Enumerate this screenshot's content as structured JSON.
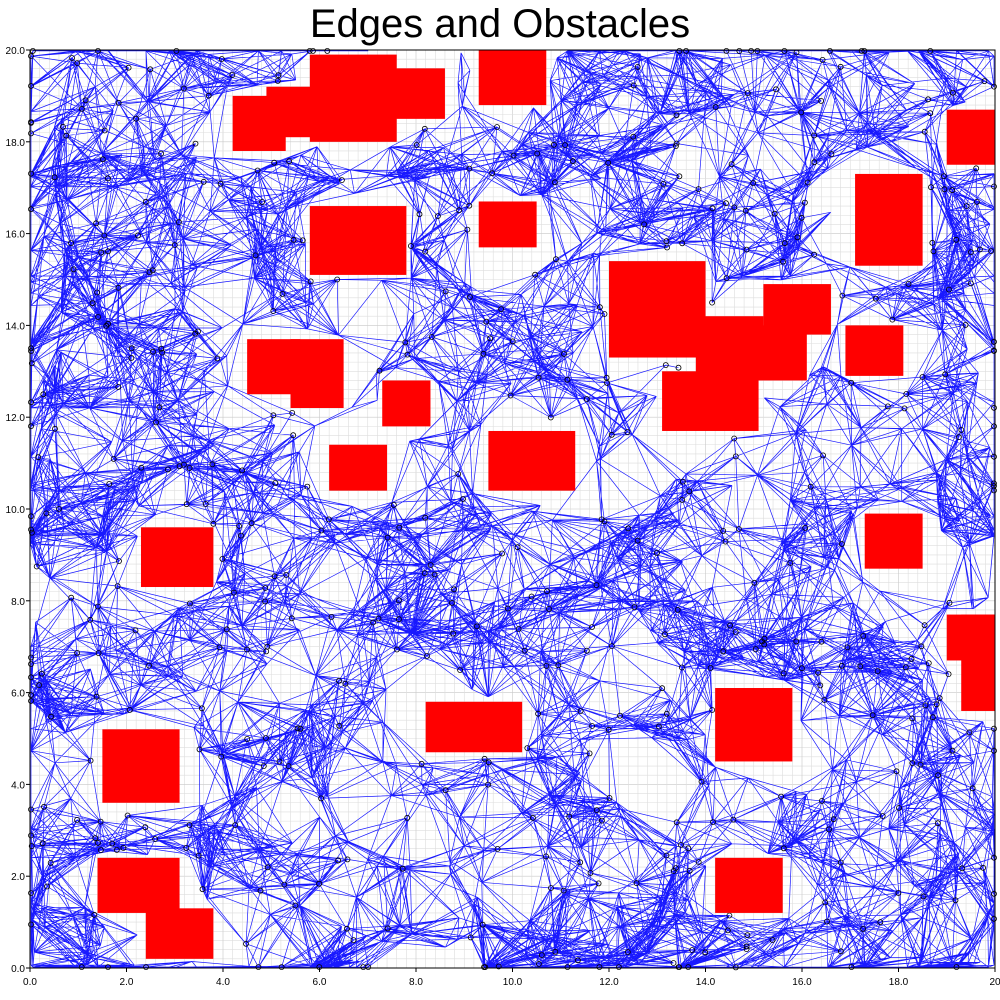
{
  "title": "Edges and Obstacles",
  "colors": {
    "edges": "#0000ff",
    "obstacles": "#ff0000",
    "nodes": "#000000",
    "grid_minor": "#dddddd",
    "grid_major": "#c8c8c8"
  },
  "chart_data": {
    "type": "scatter",
    "title": "Edges and Obstacles",
    "xlabel": "",
    "ylabel": "",
    "xlim": [
      0,
      20
    ],
    "ylim": [
      0,
      20
    ],
    "grid": true,
    "x_ticks": [
      "0.0",
      "2.0",
      "4.0",
      "6.0",
      "8.0",
      "10.0",
      "12.0",
      "14.0",
      "16.0",
      "18.0",
      "20"
    ],
    "y_ticks": [
      "0.0",
      "2.0",
      "4.0",
      "6.0",
      "8.0",
      "10.0",
      "12.0",
      "14.0",
      "16.0",
      "18.0",
      "20.0"
    ],
    "series": [
      {
        "kind": "edges",
        "description_visible": false
      },
      {
        "kind": "obstacles",
        "rectangles": [
          {
            "x0": 4.2,
            "x1": 5.3,
            "y0": 17.8,
            "y1": 19.0
          },
          {
            "x0": 4.9,
            "x1": 6.0,
            "y0": 18.1,
            "y1": 19.2
          },
          {
            "x0": 5.8,
            "x1": 7.6,
            "y0": 18.0,
            "y1": 19.9
          },
          {
            "x0": 7.3,
            "x1": 8.6,
            "y0": 18.5,
            "y1": 19.6
          },
          {
            "x0": 9.3,
            "x1": 10.7,
            "y0": 18.8,
            "y1": 20.0
          },
          {
            "x0": 19.0,
            "x1": 20.0,
            "y0": 17.5,
            "y1": 18.7
          },
          {
            "x0": 5.8,
            "x1": 7.8,
            "y0": 15.1,
            "y1": 16.6
          },
          {
            "x0": 9.3,
            "x1": 10.5,
            "y0": 15.7,
            "y1": 16.7
          },
          {
            "x0": 17.1,
            "x1": 18.5,
            "y0": 15.3,
            "y1": 17.3
          },
          {
            "x0": 12.0,
            "x1": 14.0,
            "y0": 13.3,
            "y1": 15.4
          },
          {
            "x0": 13.8,
            "x1": 15.2,
            "y0": 12.9,
            "y1": 14.2
          },
          {
            "x0": 15.2,
            "x1": 16.6,
            "y0": 13.8,
            "y1": 14.9
          },
          {
            "x0": 14.9,
            "x1": 16.1,
            "y0": 12.8,
            "y1": 14.0
          },
          {
            "x0": 13.1,
            "x1": 15.1,
            "y0": 11.7,
            "y1": 13.0
          },
          {
            "x0": 16.9,
            "x1": 18.1,
            "y0": 12.9,
            "y1": 14.0
          },
          {
            "x0": 4.5,
            "x1": 5.6,
            "y0": 12.5,
            "y1": 13.7
          },
          {
            "x0": 5.4,
            "x1": 6.5,
            "y0": 12.2,
            "y1": 13.7
          },
          {
            "x0": 7.3,
            "x1": 8.3,
            "y0": 11.8,
            "y1": 12.8
          },
          {
            "x0": 6.2,
            "x1": 7.4,
            "y0": 10.4,
            "y1": 11.4
          },
          {
            "x0": 9.5,
            "x1": 11.3,
            "y0": 10.4,
            "y1": 11.7
          },
          {
            "x0": 2.3,
            "x1": 3.8,
            "y0": 8.3,
            "y1": 9.6
          },
          {
            "x0": 17.3,
            "x1": 18.5,
            "y0": 8.7,
            "y1": 9.9
          },
          {
            "x0": 19.3,
            "x1": 20.0,
            "y0": 5.6,
            "y1": 7.7
          },
          {
            "x0": 19.0,
            "x1": 20.0,
            "y0": 6.7,
            "y1": 7.7
          },
          {
            "x0": 14.2,
            "x1": 15.8,
            "y0": 4.5,
            "y1": 6.1
          },
          {
            "x0": 8.2,
            "x1": 10.2,
            "y0": 4.7,
            "y1": 5.8
          },
          {
            "x0": 1.5,
            "x1": 3.1,
            "y0": 3.6,
            "y1": 5.2
          },
          {
            "x0": 1.4,
            "x1": 3.1,
            "y0": 1.2,
            "y1": 2.4
          },
          {
            "x0": 2.4,
            "x1": 3.8,
            "y0": 0.2,
            "y1": 1.3
          },
          {
            "x0": 14.2,
            "x1": 15.6,
            "y0": 1.2,
            "y1": 2.4
          }
        ]
      }
    ]
  }
}
